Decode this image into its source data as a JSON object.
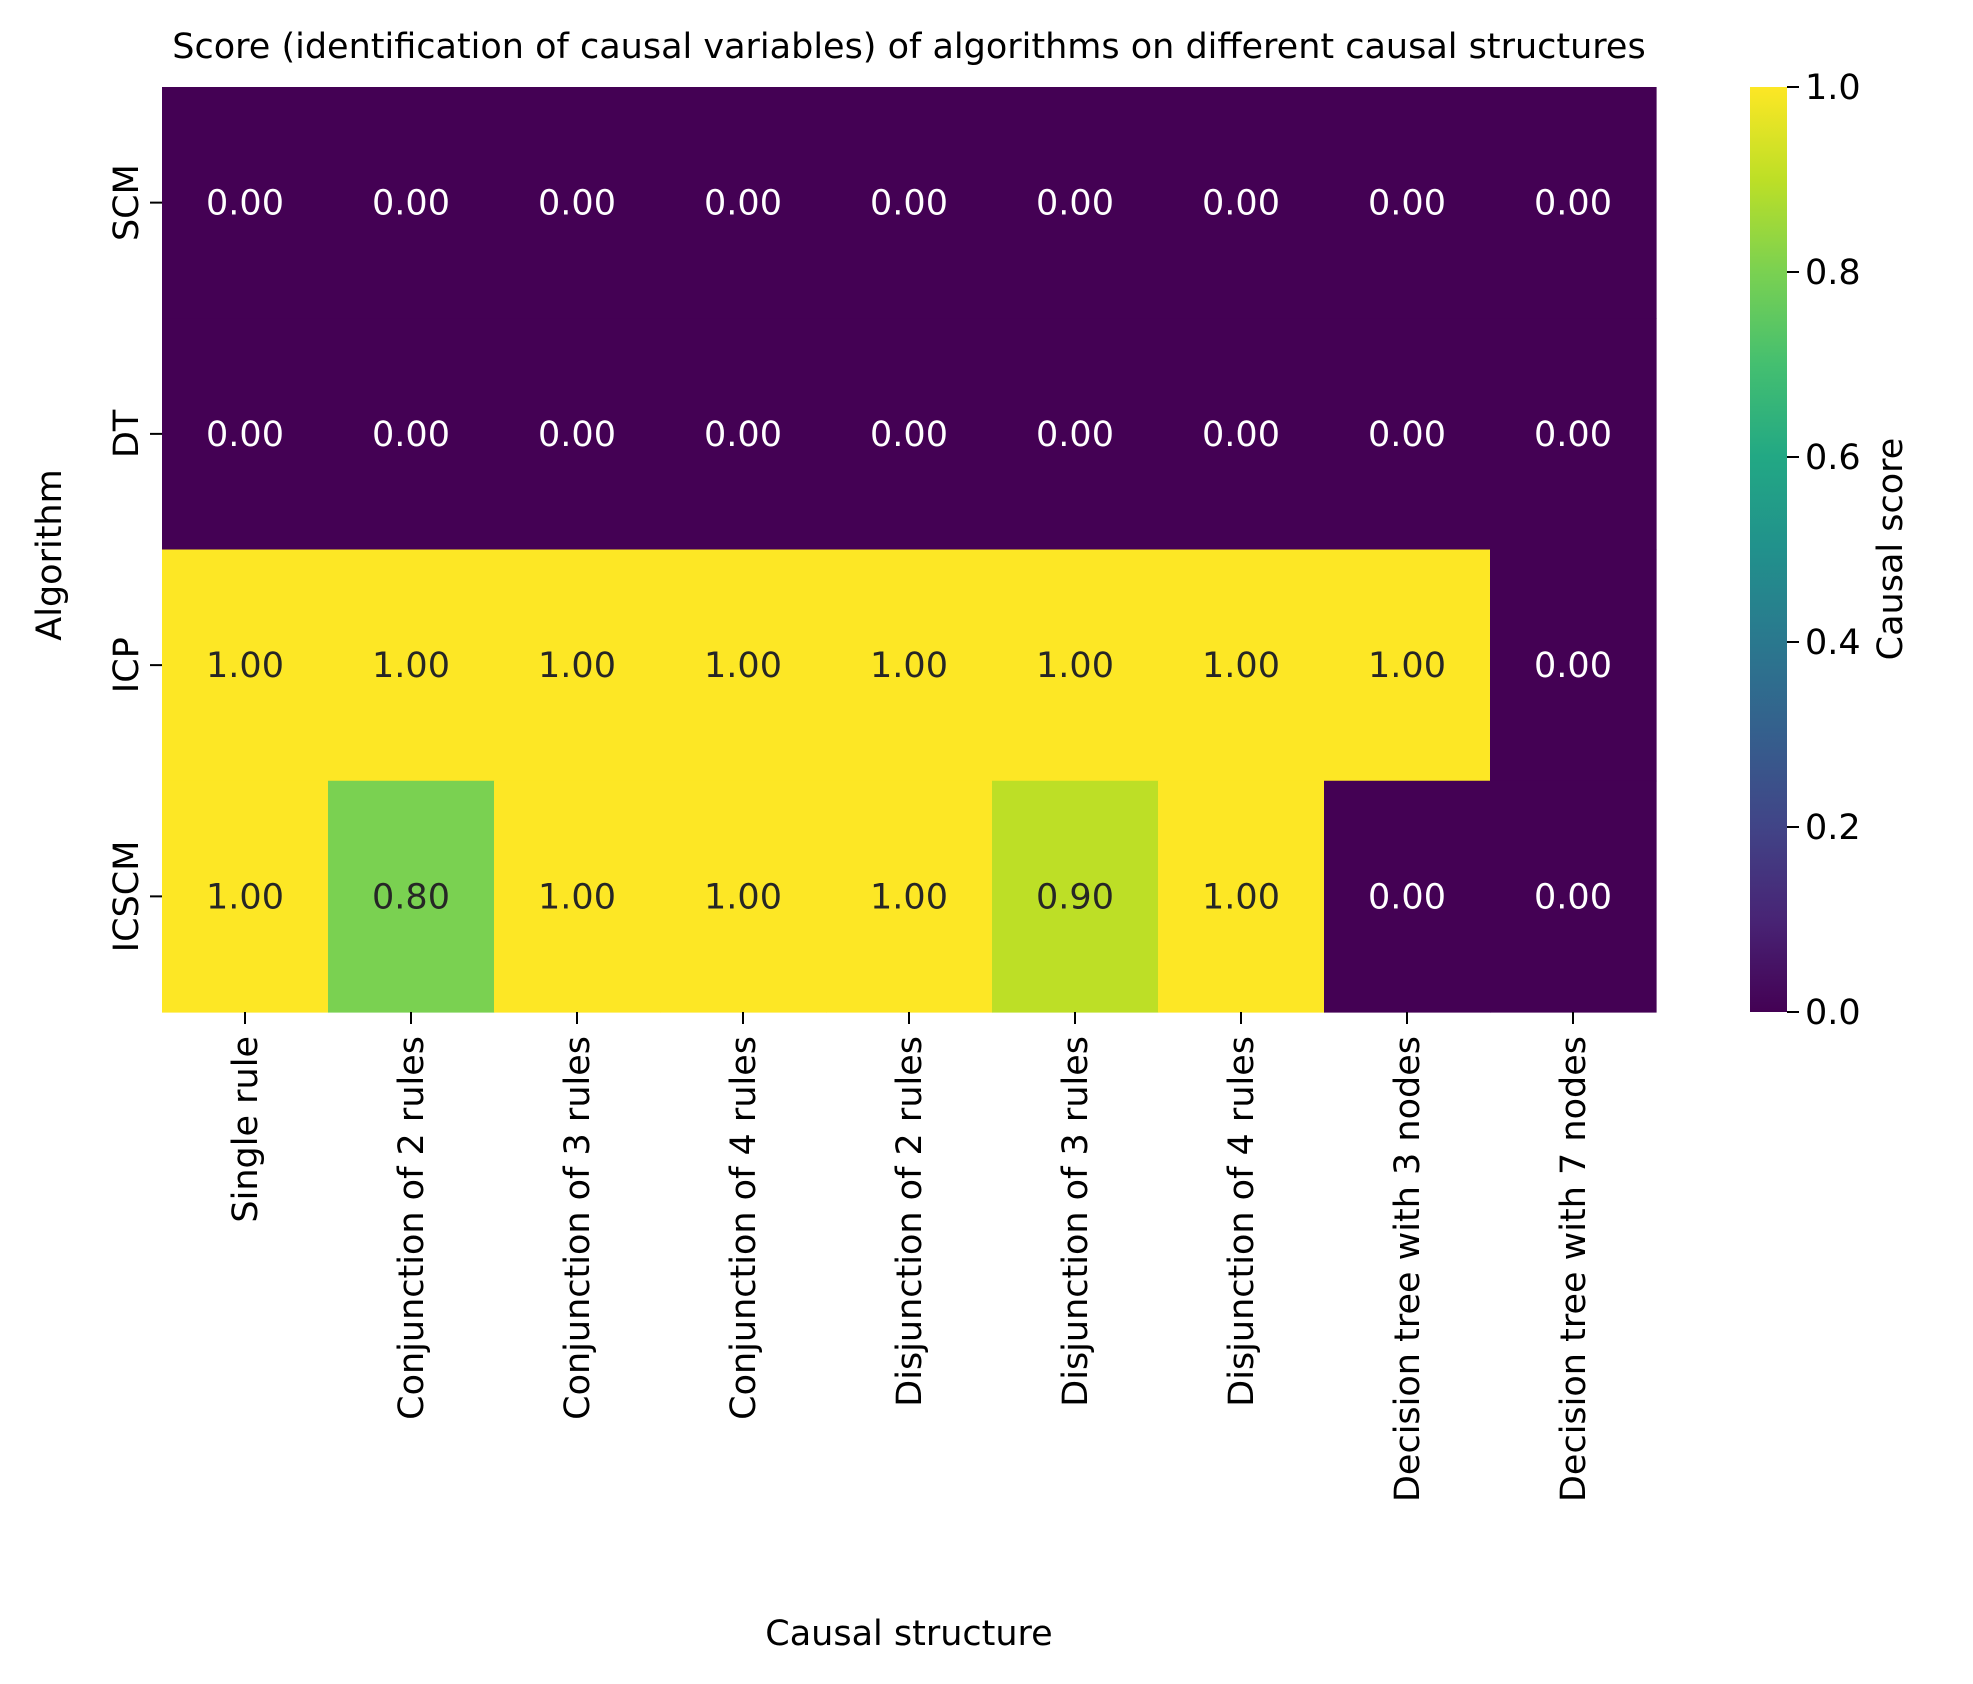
{
  "chart_data": {
    "type": "heatmap",
    "title": "Score (identification of causal variables) of algorithms on different causal structures",
    "xlabel": "Causal structure",
    "ylabel": "Algorithm",
    "x_categories": [
      "Single rule",
      "Conjunction of 2 rules",
      "Conjunction of 3 rules",
      "Conjunction of 4 rules",
      "Disjunction of 2 rules",
      "Disjunction of 3 rules",
      "Disjunction of 4 rules",
      "Decision tree with 3 nodes",
      "Decision tree with 7 nodes"
    ],
    "y_categories": [
      "SCM",
      "DT",
      "ICP",
      "ICSCM"
    ],
    "values": [
      [
        0.0,
        0.0,
        0.0,
        0.0,
        0.0,
        0.0,
        0.0,
        0.0,
        0.0
      ],
      [
        0.0,
        0.0,
        0.0,
        0.0,
        0.0,
        0.0,
        0.0,
        0.0,
        0.0
      ],
      [
        1.0,
        1.0,
        1.0,
        1.0,
        1.0,
        1.0,
        1.0,
        1.0,
        0.0
      ],
      [
        1.0,
        0.8,
        1.0,
        1.0,
        1.0,
        0.9,
        1.0,
        0.0,
        0.0
      ]
    ],
    "value_labels": [
      [
        "0.00",
        "0.00",
        "0.00",
        "0.00",
        "0.00",
        "0.00",
        "0.00",
        "0.00",
        "0.00"
      ],
      [
        "0.00",
        "0.00",
        "0.00",
        "0.00",
        "0.00",
        "0.00",
        "0.00",
        "0.00",
        "0.00"
      ],
      [
        "1.00",
        "1.00",
        "1.00",
        "1.00",
        "1.00",
        "1.00",
        "1.00",
        "1.00",
        "0.00"
      ],
      [
        "1.00",
        "0.80",
        "1.00",
        "1.00",
        "1.00",
        "0.90",
        "1.00",
        "0.00",
        "0.00"
      ]
    ],
    "colormap": "viridis",
    "colorbar": {
      "label": "Causal score",
      "range": [
        0.0,
        1.0
      ],
      "ticks": [
        0.0,
        0.2,
        0.4,
        0.6,
        0.8,
        1.0
      ],
      "tick_labels": [
        "0.0",
        "0.2",
        "0.4",
        "0.6",
        "0.8",
        "1.0"
      ]
    },
    "grid": false
  }
}
